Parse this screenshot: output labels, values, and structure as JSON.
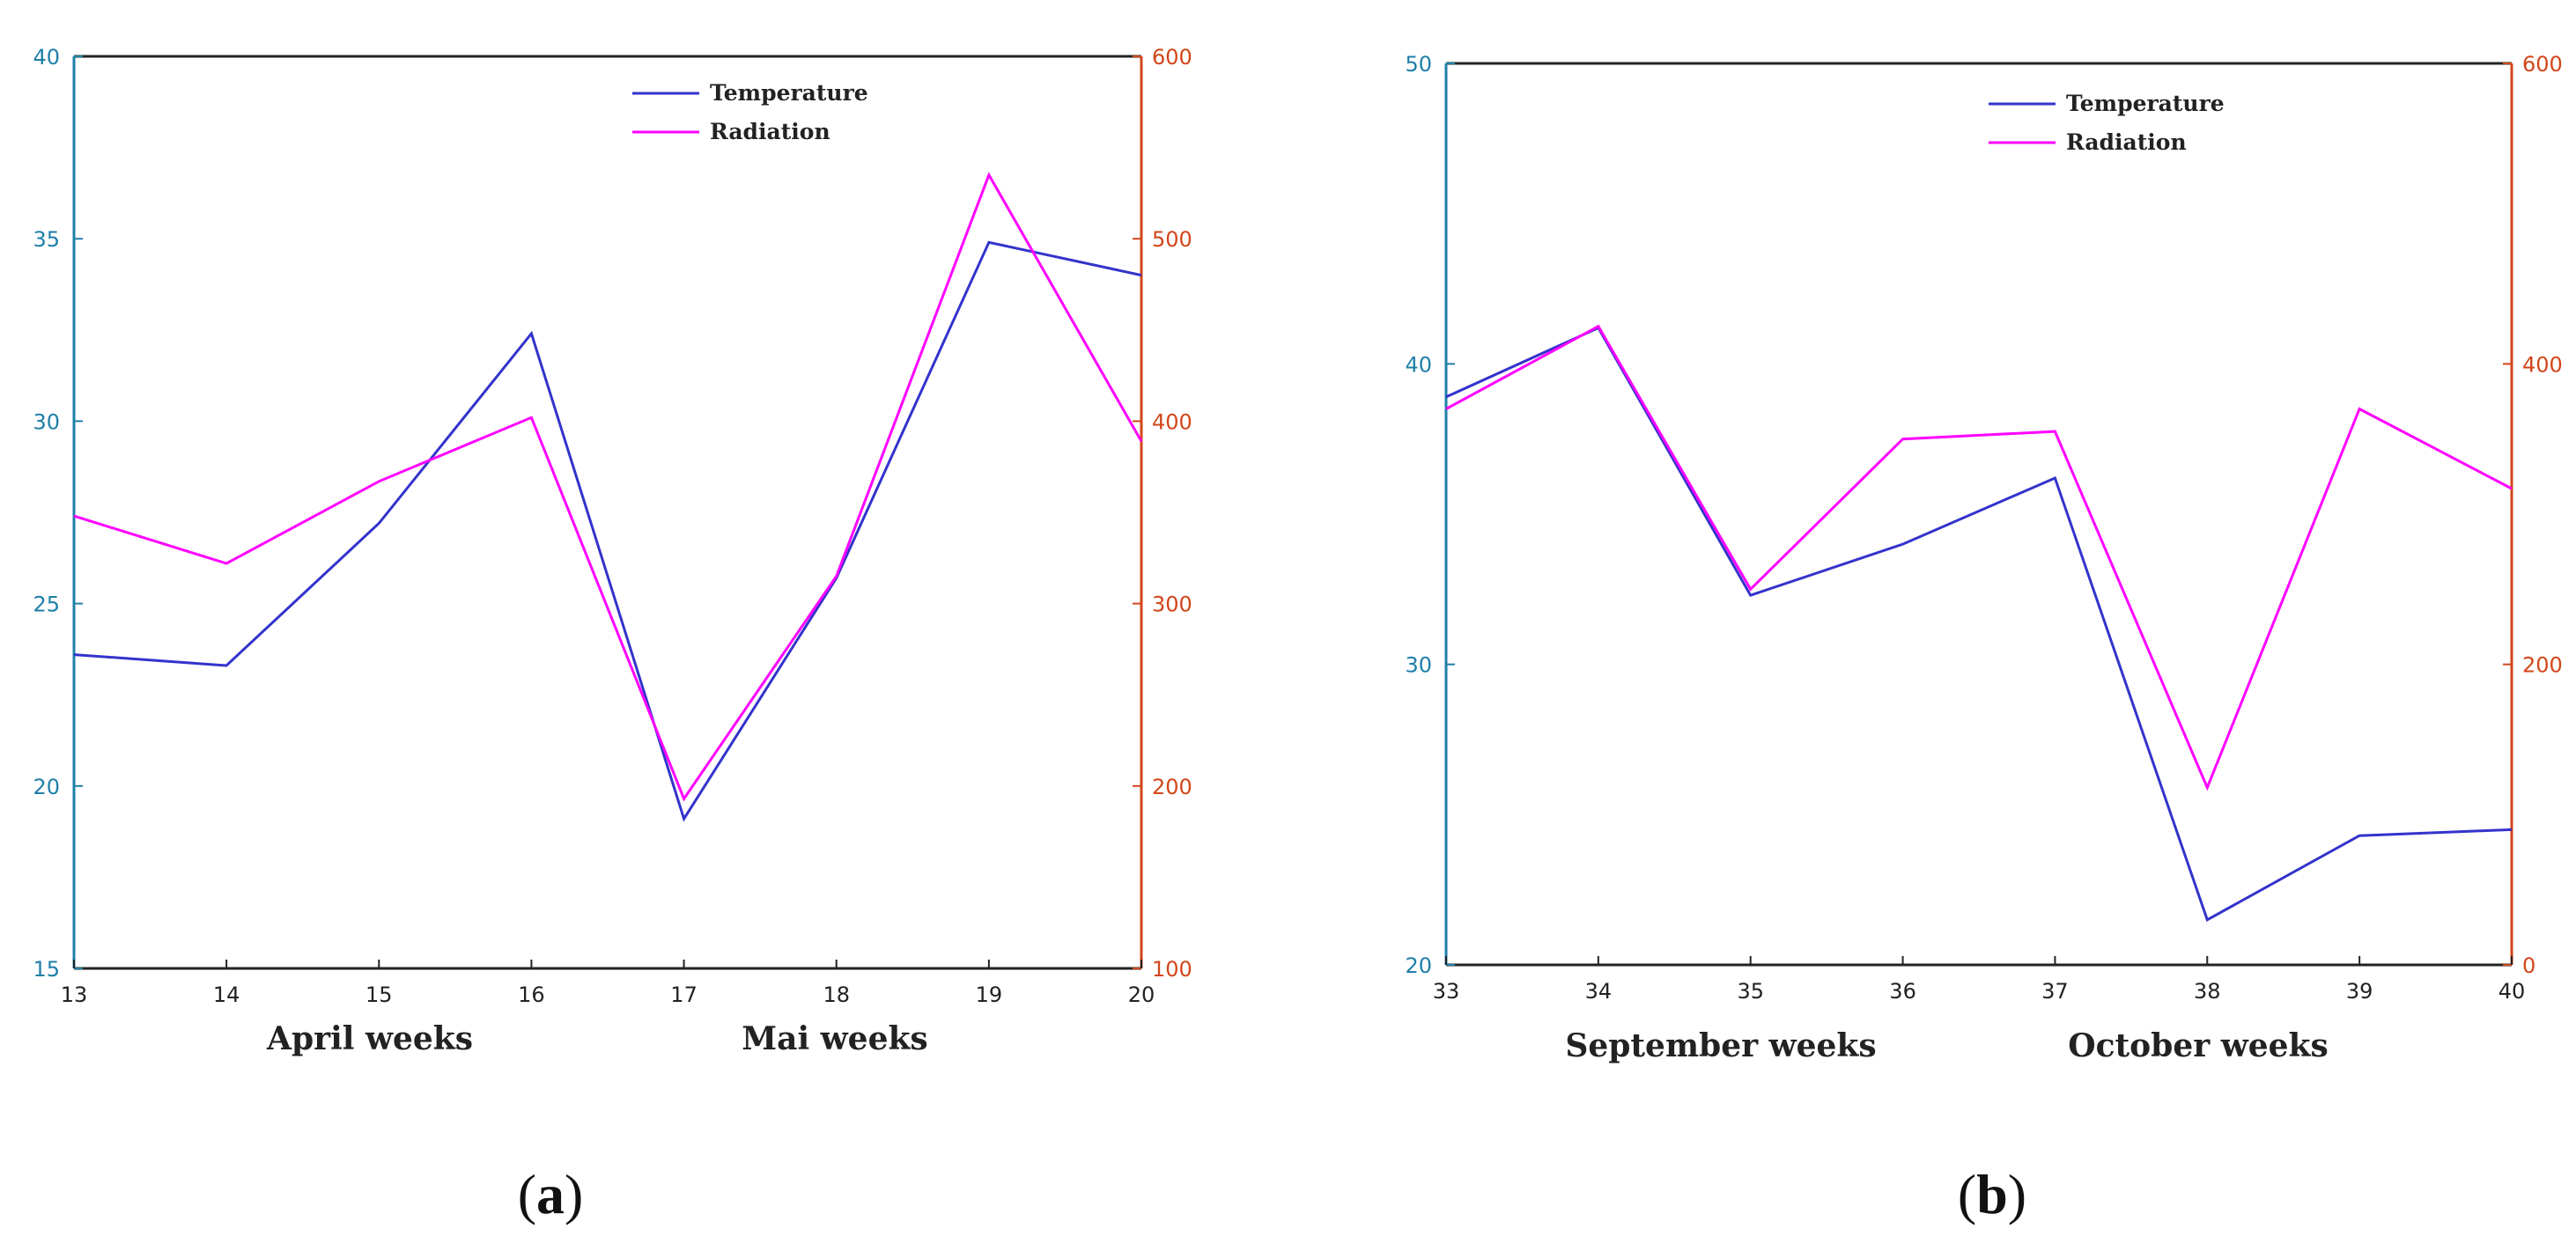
{
  "chart_data": [
    {
      "type": "line",
      "panel_label": "a",
      "x": [
        13,
        14,
        15,
        16,
        17,
        18,
        19,
        20
      ],
      "x_group_labels": [
        "April weeks",
        "Mai weeks"
      ],
      "y_left": {
        "lim": [
          15,
          40
        ],
        "ticks": [
          15,
          20,
          25,
          30,
          35,
          40
        ],
        "color": "#1f7fa8"
      },
      "y_right": {
        "lim": [
          100,
          600
        ],
        "ticks": [
          100,
          200,
          300,
          400,
          500,
          600
        ],
        "color": "#d2461a"
      },
      "series": [
        {
          "name": "Temperature",
          "axis": "left",
          "color": "#3333cc",
          "values": [
            23.6,
            23.3,
            27.2,
            32.4,
            19.1,
            25.7,
            34.9,
            34.0
          ]
        },
        {
          "name": "Radiation",
          "axis": "right",
          "color": "#ff00ff",
          "values": [
            348,
            322,
            367,
            402,
            193,
            315,
            535,
            389
          ]
        }
      ],
      "legend_position": "top-center"
    },
    {
      "type": "line",
      "panel_label": "b",
      "x": [
        33,
        34,
        35,
        36,
        37,
        38,
        39,
        40
      ],
      "x_group_labels": [
        "September weeks",
        "October weeks"
      ],
      "y_left": {
        "lim": [
          20,
          50
        ],
        "ticks": [
          20,
          30,
          40,
          50
        ],
        "color": "#1f7fa8"
      },
      "y_right": {
        "lim": [
          0,
          600
        ],
        "ticks": [
          0,
          200,
          400,
          600
        ],
        "color": "#d2461a"
      },
      "series": [
        {
          "name": "Temperature",
          "axis": "left",
          "color": "#3333cc",
          "values": [
            38.9,
            41.2,
            32.3,
            34.0,
            36.2,
            21.5,
            24.3,
            24.5
          ]
        },
        {
          "name": "Radiation",
          "axis": "right",
          "color": "#ff00ff",
          "values": [
            370,
            425,
            250,
            350,
            355,
            118,
            370,
            317
          ]
        }
      ],
      "legend_position": "top-center"
    }
  ],
  "colors": {
    "left_axis": "#1f7fa8",
    "right_axis": "#d2461a",
    "temperature": "#3333cc",
    "radiation": "#ff00ff"
  }
}
